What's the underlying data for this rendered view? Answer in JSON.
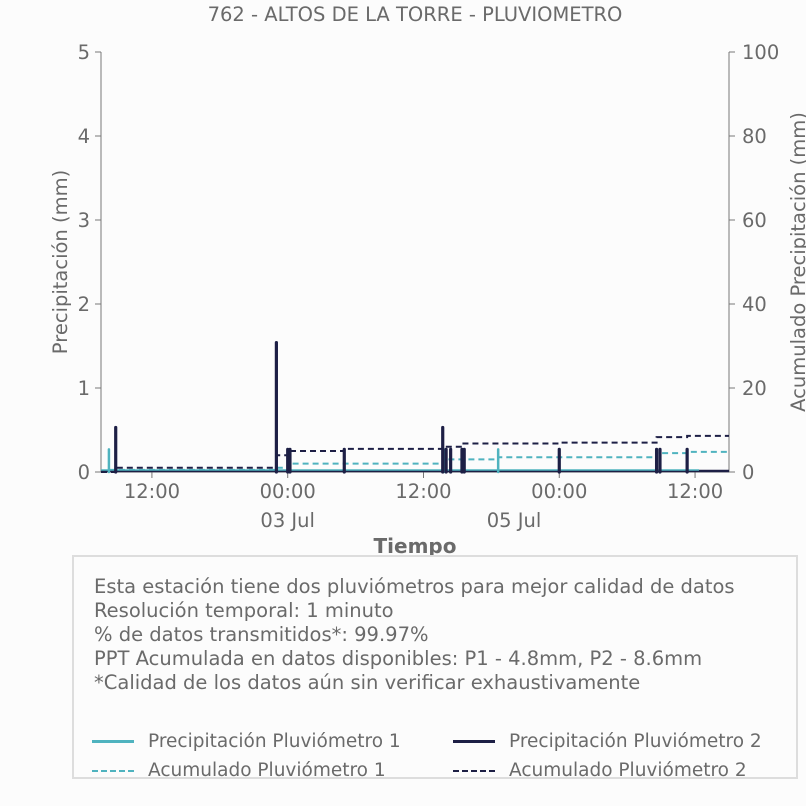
{
  "title": "762 - ALTOS DE LA TORRE - PLUVIOMETRO",
  "colors": {
    "p1": "#4fb3bf",
    "p2": "#1d1f45",
    "text": "#6a6a6a",
    "axis": "#777777"
  },
  "info": {
    "lines": [
      "Esta estación tiene dos pluviómetros para mejor calidad de datos",
      "Resolución temporal: 1 minuto",
      "% de datos transmitidos*: 99.97%",
      "PPT Acumulada en datos disponibles: P1 - 4.8mm, P2 - 8.6mm",
      "*Calidad de los datos aún sin verificar exhaustivamente"
    ]
  },
  "legend": {
    "p1_precip": "Precipitación Pluviómetro 1",
    "p2_precip": "Precipitación Pluviómetro 2",
    "p1_acum": "Acumulado Pluviómetro 1",
    "p2_acum": "Acumulado Pluviómetro 2"
  },
  "chart_data": {
    "type": "line",
    "title": "762 - ALTOS DE LA TORRE - PLUVIOMETRO",
    "xlabel": "Tiempo",
    "ylabel_left": "Precipitación (mm)",
    "ylabel_right": "Acumulado Precipitación (mm)",
    "x_unit": "hours since 2025-07-02 00:00",
    "xlim": [
      -16.5,
      39
    ],
    "ylim_left": [
      0,
      5
    ],
    "ylim_right": [
      0,
      100
    ],
    "y_ticks_left": [
      "0",
      "1",
      "2",
      "3",
      "4",
      "5"
    ],
    "y_ticks_right": [
      "0",
      "20",
      "40",
      "60",
      "80",
      "100"
    ],
    "x_ticks": [
      {
        "x": -12,
        "label": "12:00"
      },
      {
        "x": 0,
        "label": "00:00"
      },
      {
        "x": 12,
        "label": "12:00"
      },
      {
        "x": 24,
        "label": "00:00"
      },
      {
        "x": 36,
        "label": "12:00"
      }
    ],
    "x_date_labels": [
      {
        "x": 0,
        "label": "03 Jul"
      },
      {
        "x": 20,
        "label": "05 Jul"
      }
    ],
    "series": [
      {
        "name": "Precipitación Pluviómetro 1",
        "kind": "bars",
        "axis": "left",
        "points": [
          [
            -15.8,
            0.27
          ],
          [
            -1.0,
            0.27
          ],
          [
            0.0,
            0.27
          ],
          [
            13.8,
            0.27
          ],
          [
            18.6,
            0.27
          ],
          [
            32.6,
            0.27
          ],
          [
            35.3,
            0.27
          ]
        ]
      },
      {
        "name": "Precipitación Pluviómetro 2",
        "kind": "bars",
        "axis": "left",
        "points": [
          [
            -15.2,
            0.53
          ],
          [
            -1.0,
            1.54
          ],
          [
            0.0,
            0.27
          ],
          [
            0.2,
            0.27
          ],
          [
            5.0,
            0.27
          ],
          [
            13.7,
            0.53
          ],
          [
            14.0,
            0.27
          ],
          [
            14.4,
            0.27
          ],
          [
            15.4,
            0.27
          ],
          [
            15.6,
            0.27
          ],
          [
            24.0,
            0.27
          ],
          [
            32.6,
            0.27
          ],
          [
            32.9,
            0.27
          ],
          [
            35.3,
            0.27
          ]
        ]
      },
      {
        "name": "Acumulado Pluviómetro 1",
        "kind": "step",
        "axis": "right",
        "points": [
          [
            -16.5,
            0.0
          ],
          [
            -15.8,
            0.5
          ],
          [
            -1.0,
            1.0
          ],
          [
            0.0,
            2.0
          ],
          [
            13.8,
            3.0
          ],
          [
            18.6,
            3.5
          ],
          [
            32.6,
            4.5
          ],
          [
            35.3,
            4.8
          ],
          [
            39.0,
            4.8
          ]
        ]
      },
      {
        "name": "Acumulado Pluviómetro 2",
        "kind": "step",
        "axis": "right",
        "points": [
          [
            -16.5,
            0.0
          ],
          [
            -15.2,
            1.0
          ],
          [
            -1.0,
            4.0
          ],
          [
            0.0,
            5.0
          ],
          [
            5.0,
            5.5
          ],
          [
            13.7,
            6.0
          ],
          [
            15.4,
            6.8
          ],
          [
            24.0,
            7.0
          ],
          [
            32.6,
            8.3
          ],
          [
            35.3,
            8.6
          ],
          [
            39.0,
            8.6
          ]
        ]
      }
    ]
  }
}
